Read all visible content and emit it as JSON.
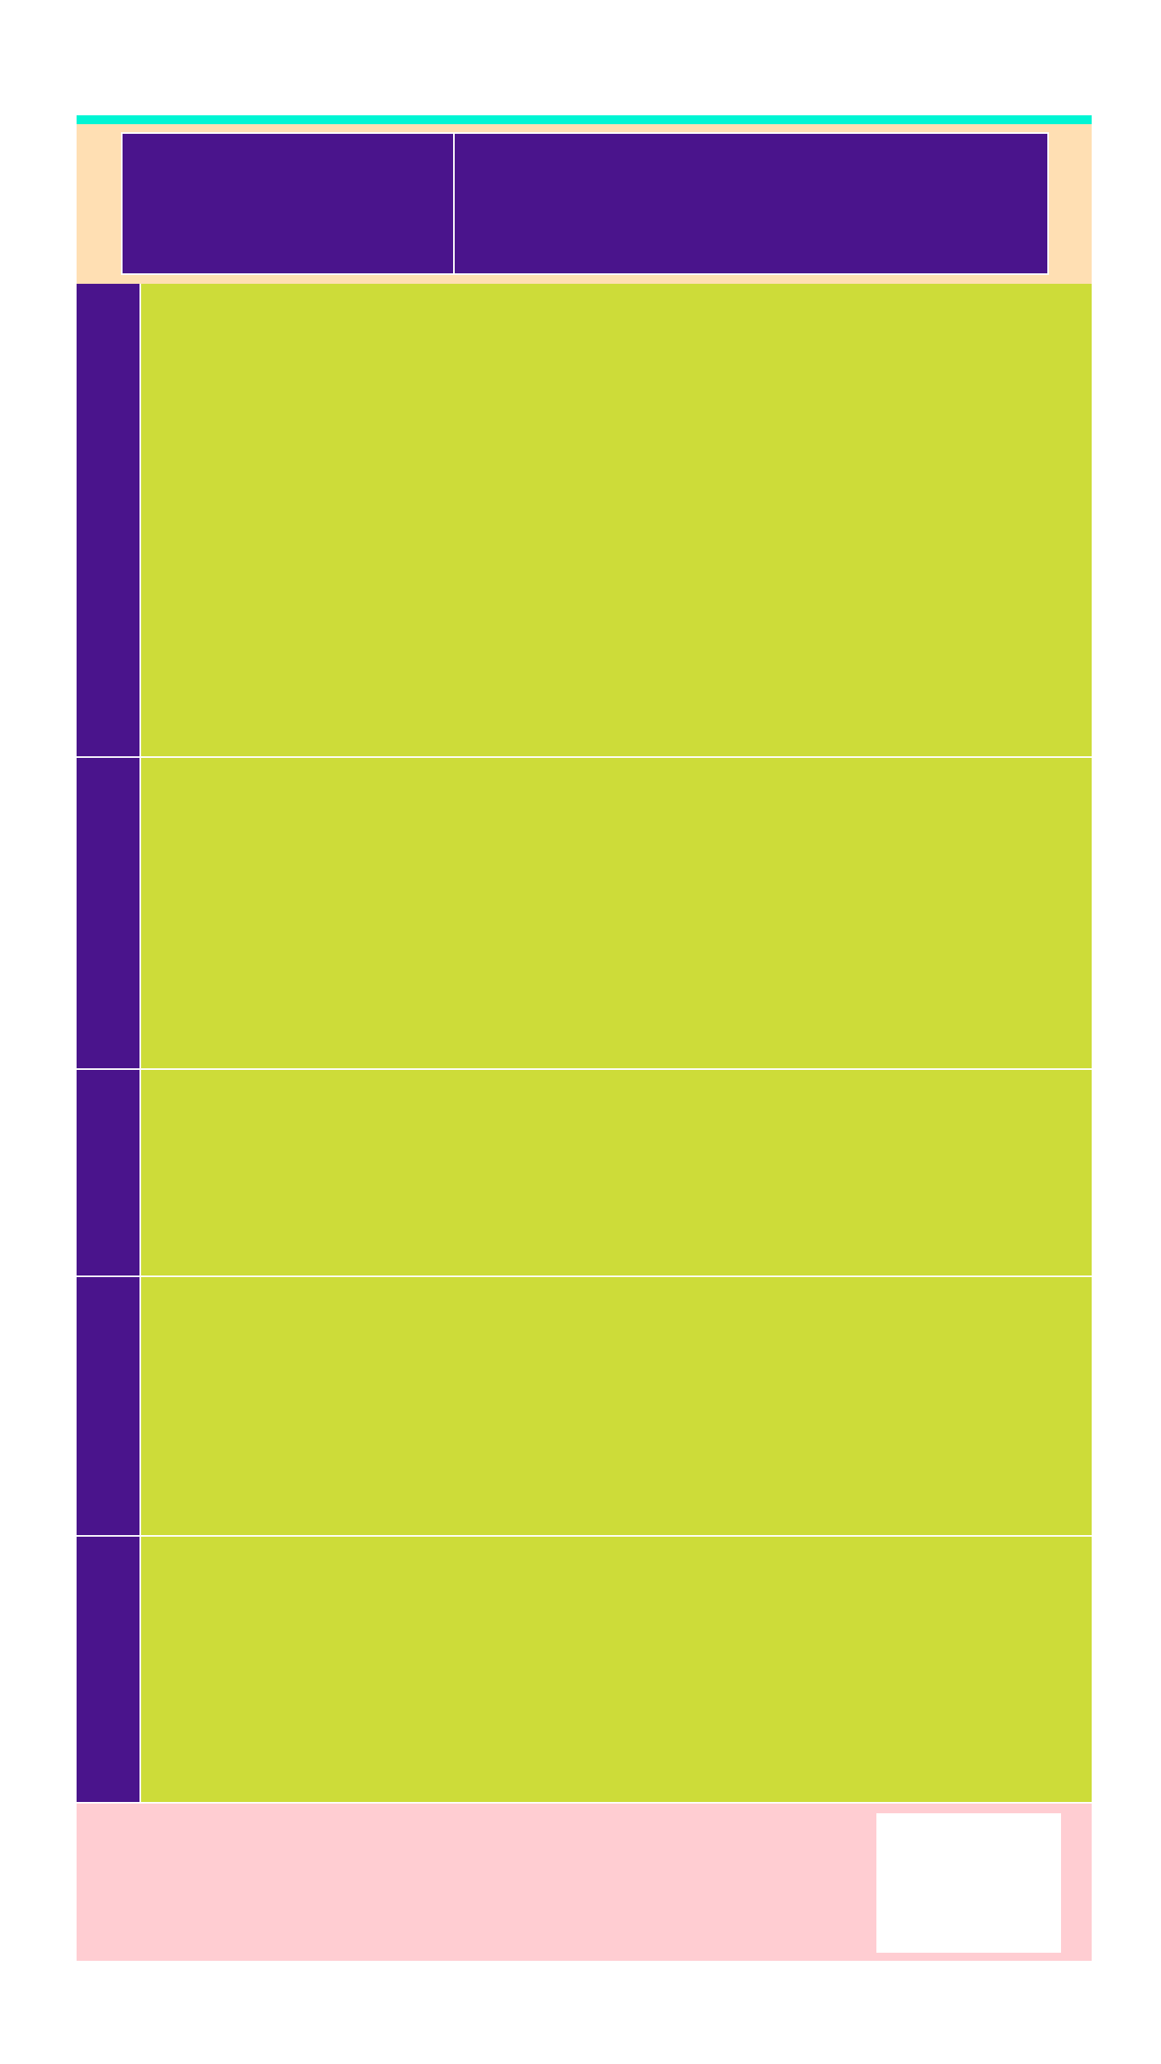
{
  "colors": {
    "accent_strip": "#00f5d4",
    "header_band": "#ffdfb3",
    "header_panel": "#4a148c",
    "row_rail": "#4a148c",
    "row_content": "#cddc39",
    "footer_band": "#ffcdd2",
    "footer_card": "#ffffff"
  },
  "rows": [
    {
      "id": "row-1"
    },
    {
      "id": "row-2"
    },
    {
      "id": "row-3"
    },
    {
      "id": "row-4"
    },
    {
      "id": "row-5"
    }
  ]
}
